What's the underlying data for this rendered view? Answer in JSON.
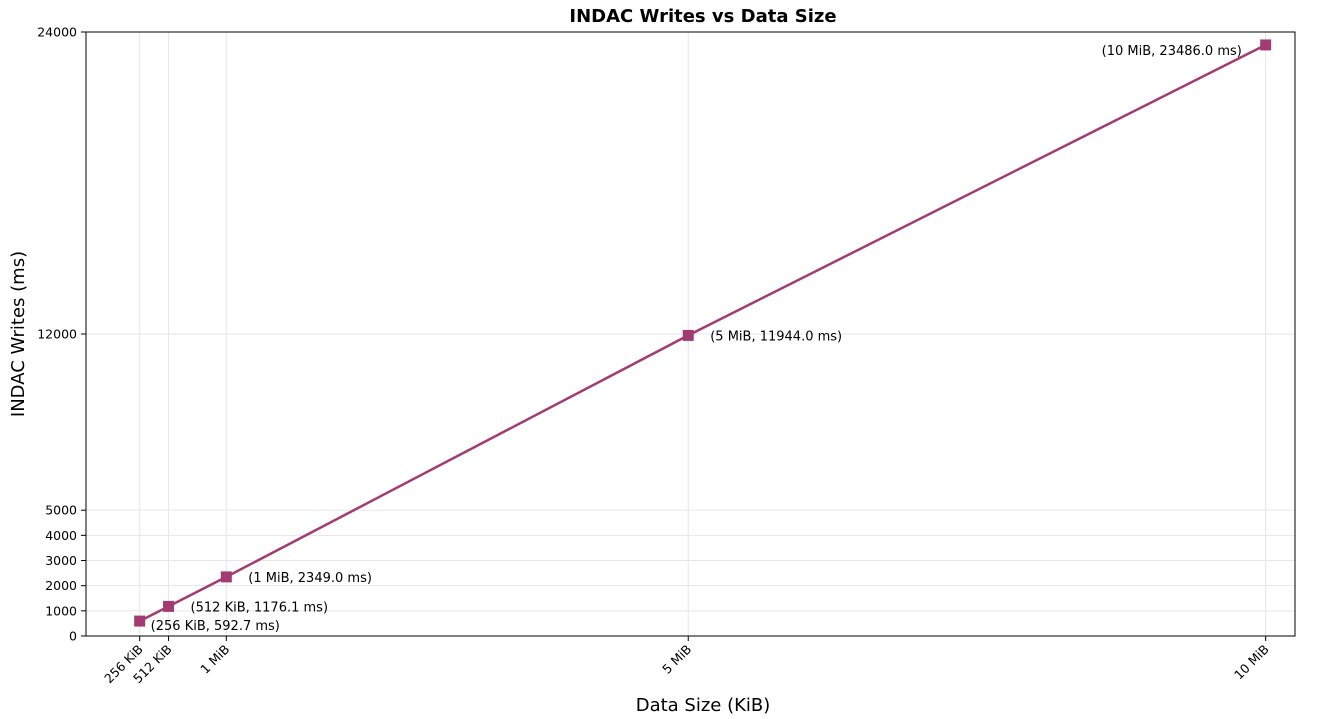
{
  "chart_data": {
    "type": "line",
    "title": "INDAC Writes vs Data Size",
    "xlabel": "Data Size (KiB)",
    "ylabel": "INDAC Writes (ms)",
    "x": [
      256,
      512,
      1024,
      5120,
      10240
    ],
    "x_tick_labels": [
      "256 KiB",
      "512 KiB",
      "1 MiB",
      "5 MiB",
      "10 MiB"
    ],
    "y_ticks": [
      0,
      1000,
      2000,
      3000,
      4000,
      5000,
      12000,
      24000
    ],
    "y_tick_labels": [
      "0",
      "1000",
      "2000",
      "3000",
      "4000",
      "5000",
      "12000",
      "24000"
    ],
    "xlim": [
      -220,
      10500
    ],
    "ylim": [
      0,
      24000
    ],
    "grid": true,
    "series": [
      {
        "values": [
          592.7,
          1176.1,
          2349.0,
          11944.0,
          23486.0
        ],
        "color": "#a23b72",
        "marker": "square"
      }
    ],
    "point_labels": [
      "(256 KiB, 592.7 ms)",
      "(512 KiB, 1176.1 ms)",
      "(1 MiB, 2349.0 ms)",
      "(5 MiB, 11944.0 ms)",
      "(10 MiB, 23486.0 ms)"
    ]
  }
}
